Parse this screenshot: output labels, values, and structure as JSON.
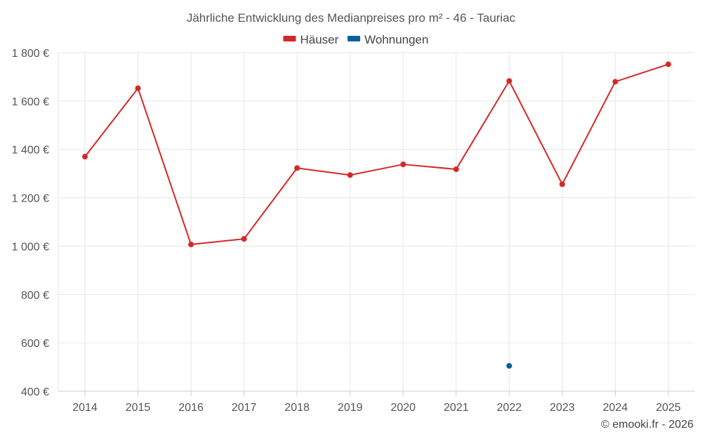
{
  "chart_data": {
    "type": "line",
    "title": "Jährliche Entwicklung des Medianpreises pro m² - 46 - Tauriac",
    "categories": [
      "2014",
      "2015",
      "2016",
      "2017",
      "2018",
      "2019",
      "2020",
      "2021",
      "2022",
      "2023",
      "2024",
      "2025"
    ],
    "series": [
      {
        "name": "Häuser",
        "color": "#d62728",
        "values": [
          1370,
          1653,
          1007,
          1030,
          1323,
          1294,
          1338,
          1318,
          1683,
          1256,
          1680,
          1752
        ]
      },
      {
        "name": "Wohnungen",
        "color": "#00629b",
        "values": [
          null,
          null,
          null,
          null,
          null,
          null,
          null,
          null,
          505,
          null,
          null,
          null
        ]
      }
    ],
    "y_ticks": [
      400,
      600,
      800,
      1000,
      1200,
      1400,
      1600,
      1800
    ],
    "y_tick_labels": [
      "400 €",
      "600 €",
      "800 €",
      "1 000 €",
      "1 200 €",
      "1 400 €",
      "1 600 €",
      "1 800 €"
    ],
    "ylim": [
      400,
      1800
    ],
    "xlabel": "",
    "ylabel": "",
    "grid": true,
    "legend_position": "top-center"
  },
  "credit": "© emooki.fr - 2026"
}
